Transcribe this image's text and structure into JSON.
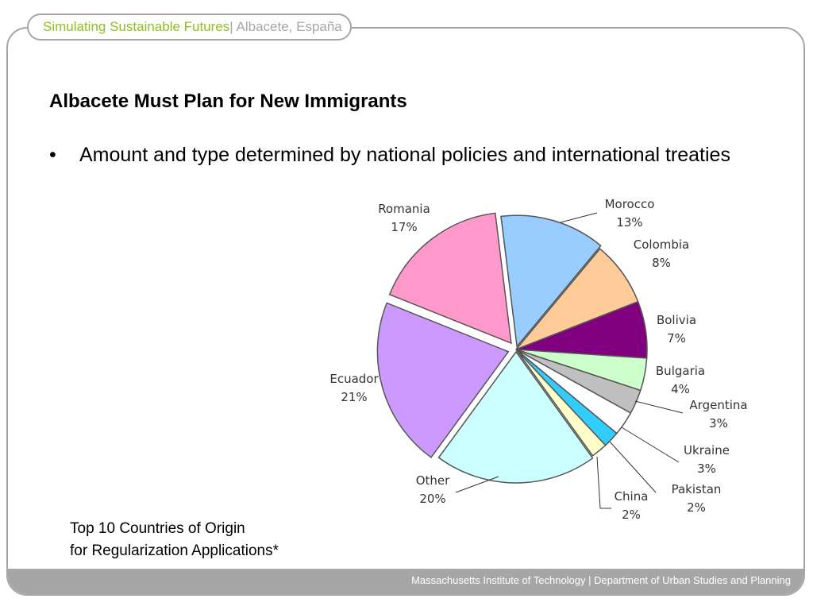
{
  "header": {
    "title_green": "Simulating Sustainable Futures",
    "title_rest": " | Albacete, España"
  },
  "slide": {
    "title": "Albacete Must Plan for New Immigrants",
    "bullet": "Amount and type determined by national policies and international treaties",
    "bullet_marker": "•",
    "caption_line1": "Top 10 Countries of Origin",
    "caption_line2": "for Regularization Applications*"
  },
  "footer": {
    "text": "Massachusetts Institute of Technology | Department of Urban Studies and Planning"
  },
  "colors": {
    "accent_green": "#8fbf1e",
    "frame_grey": "#a6a6a6"
  },
  "chart_data": {
    "type": "pie",
    "slices": [
      {
        "label": "Morocco",
        "pct_label": "13%",
        "value": 13,
        "color": "#99ccff"
      },
      {
        "label": "Colombia",
        "pct_label": "8%",
        "value": 8,
        "color": "#ffcc99"
      },
      {
        "label": "Bolivia",
        "pct_label": "7%",
        "value": 7,
        "color": "#800080"
      },
      {
        "label": "Bulgaria",
        "pct_label": "4%",
        "value": 4,
        "color": "#ccffcc"
      },
      {
        "label": "Argentina",
        "pct_label": "3%",
        "value": 3,
        "color": "#c0c0c0"
      },
      {
        "label": "Ukraine",
        "pct_label": "3%",
        "value": 3,
        "color": "#ffffff"
      },
      {
        "label": "Pakistan",
        "pct_label": "2%",
        "value": 2,
        "color": "#33ccff"
      },
      {
        "label": "China",
        "pct_label": "2%",
        "value": 2,
        "color": "#ffffcc"
      },
      {
        "label": "Other",
        "pct_label": "20%",
        "value": 20,
        "color": "#ccffff"
      },
      {
        "label": "Ecuador",
        "pct_label": "21%",
        "value": 21,
        "color": "#cc99ff"
      },
      {
        "label": "Romania",
        "pct_label": "17%",
        "value": 17,
        "color": "#ff99cc"
      }
    ]
  }
}
